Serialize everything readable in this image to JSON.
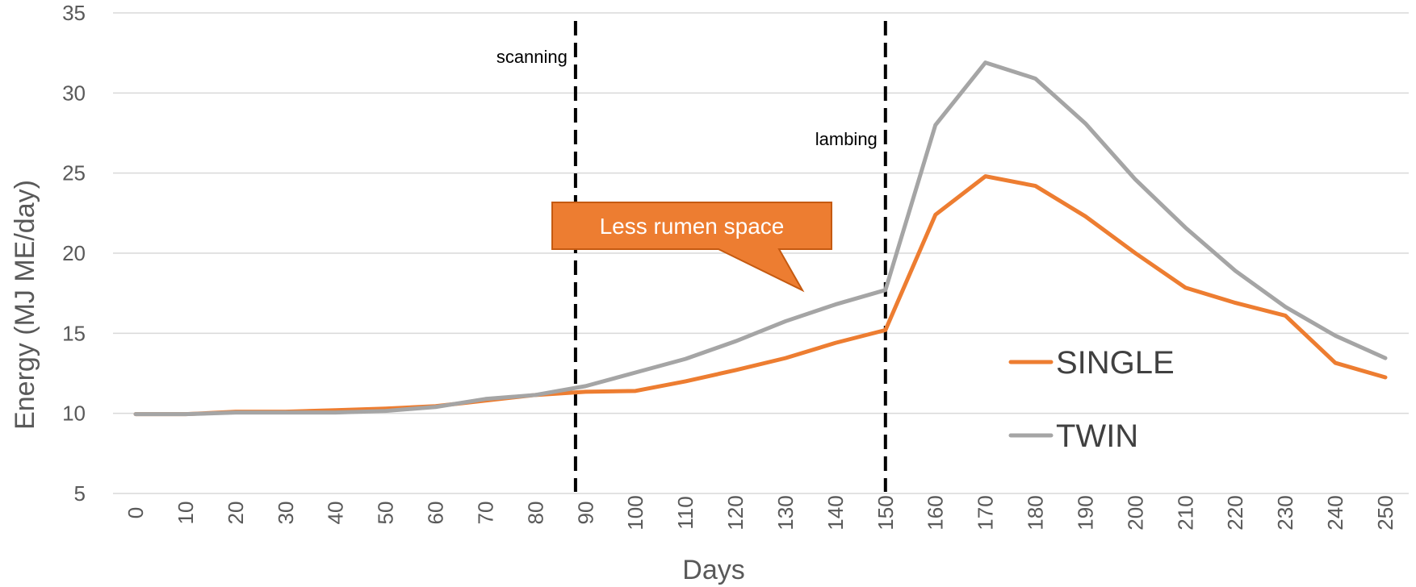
{
  "chart_data": {
    "type": "line",
    "title": "",
    "xlabel": "Days",
    "ylabel": "Energy (MJ ME/day)",
    "ylim": [
      5,
      35
    ],
    "yticks": [
      5,
      10,
      15,
      20,
      25,
      30,
      35
    ],
    "grid": true,
    "legend": "right",
    "categories": [
      0,
      10,
      20,
      30,
      40,
      50,
      60,
      70,
      80,
      90,
      100,
      110,
      120,
      130,
      140,
      150,
      160,
      170,
      180,
      190,
      200,
      210,
      220,
      230,
      240,
      250
    ],
    "series": [
      {
        "name": "SINGLE",
        "color": "#ED7D31",
        "values": [
          9.95,
          9.95,
          10.1,
          10.1,
          10.2,
          10.3,
          10.45,
          10.8,
          11.15,
          11.35,
          11.4,
          12.0,
          12.7,
          13.45,
          14.4,
          15.2,
          22.4,
          24.8,
          24.2,
          22.3,
          20.0,
          17.85,
          16.9,
          16.1,
          13.15,
          12.25
        ]
      },
      {
        "name": "TWIN",
        "color": "#A5A5A5",
        "values": [
          9.95,
          9.95,
          10.05,
          10.05,
          10.05,
          10.15,
          10.4,
          10.9,
          11.15,
          11.7,
          12.55,
          13.4,
          14.5,
          15.75,
          16.8,
          17.7,
          28.0,
          31.9,
          30.9,
          28.1,
          24.6,
          21.6,
          18.9,
          16.65,
          14.85,
          13.45
        ]
      }
    ],
    "markers": [
      {
        "label": "scanning",
        "x": 88
      },
      {
        "label": "lambing",
        "x": 150
      }
    ],
    "callout": {
      "text": "Less rumen space",
      "color": "#ED7D31",
      "border": "#C55A11"
    }
  }
}
